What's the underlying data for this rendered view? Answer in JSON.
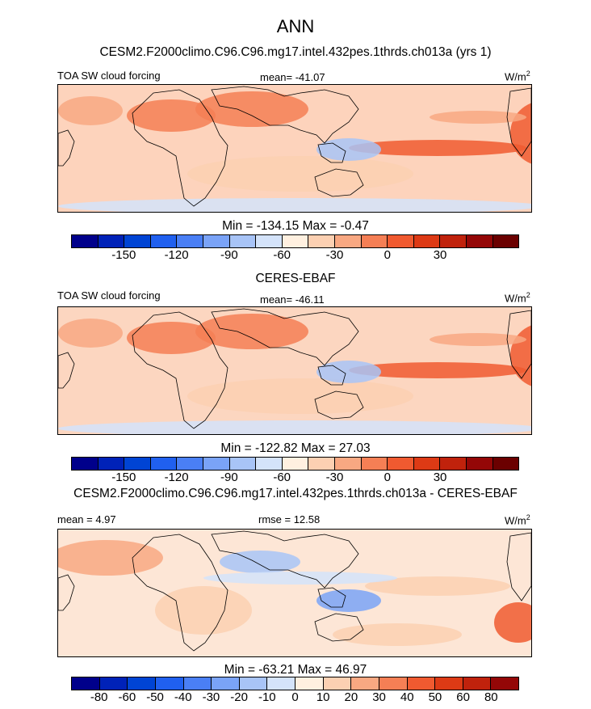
{
  "title": "ANN",
  "panels": [
    {
      "subtitle": "CESM2.F2000climo.C96.C96.mg17.intel.432pes.1thrds.ch013a (yrs 1)",
      "left_label": "TOA SW cloud forcing",
      "center_label": "mean= -41.07",
      "units": "W/m",
      "units_sup": "2",
      "minmax": "Min = -134.15 Max =  -0.47",
      "colorbar": {
        "colors": [
          "#00008b",
          "#0022b8",
          "#0044d4",
          "#2060ef",
          "#4a7ff5",
          "#7aa3f7",
          "#a8c4f7",
          "#d4e3fa",
          "#fff0e0",
          "#fcd0b2",
          "#f8a882",
          "#f57f55",
          "#f05a30",
          "#dd3a15",
          "#c0220c",
          "#940707",
          "#6b0000"
        ],
        "tick_labels": [
          "-150",
          "-120",
          "-90",
          "-60",
          "-30",
          "0",
          "30"
        ],
        "tick_values": [
          -150,
          -120,
          -90,
          -60,
          -30,
          0,
          30
        ]
      },
      "field": {
        "base": -45,
        "tint": "#fdd3bc"
      }
    },
    {
      "subtitle": "CERES-EBAF",
      "left_label": "TOA SW cloud forcing",
      "center_label": "mean= -46.11",
      "units": "W/m",
      "units_sup": "2",
      "minmax": "Min = -122.82 Max =  27.03",
      "colorbar": {
        "colors": [
          "#00008b",
          "#0022b8",
          "#0044d4",
          "#2060ef",
          "#4a7ff5",
          "#7aa3f7",
          "#a8c4f7",
          "#d4e3fa",
          "#fff0e0",
          "#fcd0b2",
          "#f8a882",
          "#f57f55",
          "#f05a30",
          "#dd3a15",
          "#c0220c",
          "#940707",
          "#6b0000"
        ],
        "tick_labels": [
          "-150",
          "-120",
          "-90",
          "-60",
          "-30",
          "0",
          "30"
        ],
        "tick_values": [
          -150,
          -120,
          -90,
          -60,
          -30,
          0,
          30
        ]
      },
      "field": {
        "base": -46,
        "tint": "#fcd6c0"
      }
    },
    {
      "subtitle": "CESM2.F2000climo.C96.C96.mg17.intel.432pes.1thrds.ch013a - CERES-EBAF",
      "left_label": "mean =   4.97",
      "center_label": "rmse =  12.58",
      "units": "W/m",
      "units_sup": "2",
      "minmax": "Min = -63.21 Max =  46.97",
      "colorbar": {
        "colors": [
          "#00008b",
          "#0022b8",
          "#0044d4",
          "#2060ef",
          "#4a7ff5",
          "#7aa3f7",
          "#a8c4f7",
          "#d4e3fa",
          "#fff0e0",
          "#fcd0b2",
          "#f8a882",
          "#f57f55",
          "#f05a30",
          "#dd3a15",
          "#c0220c",
          "#940707"
        ],
        "tick_labels": [
          "-80",
          "-60",
          "-50",
          "-40",
          "-30",
          "-20",
          "-10",
          "0",
          "10",
          "20",
          "30",
          "40",
          "50",
          "60",
          "80"
        ],
        "tick_values": [
          -80,
          -60,
          -50,
          -40,
          -30,
          -20,
          -10,
          0,
          10,
          20,
          30,
          40,
          50,
          60,
          80
        ]
      },
      "field": {
        "base": 5,
        "tint": "#fde6d6"
      }
    }
  ]
}
